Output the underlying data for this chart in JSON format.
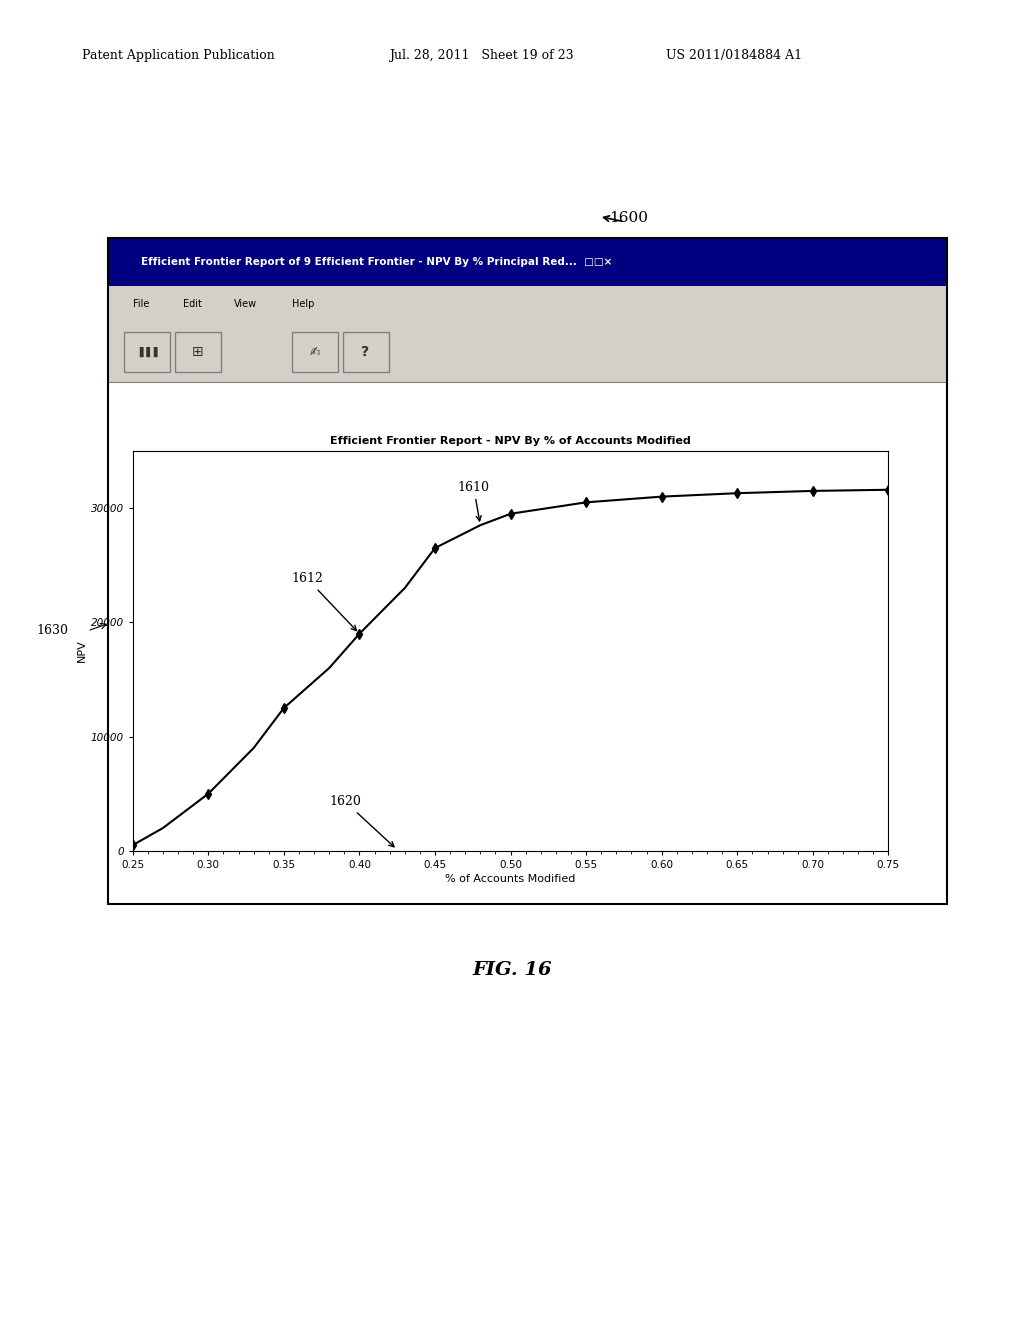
{
  "page_title_left": "Patent Application Publication",
  "page_title_center": "Jul. 28, 2011   Sheet 19 of 23",
  "page_title_right": "US 2011/0184884 A1",
  "window_title": "Efficient Frontier Report of 9 Efficient Frontier - NPV By % Principal Red...  □□×",
  "menu_items": [
    "File",
    "Edit",
    "View",
    "Help"
  ],
  "chart_title": "Efficient Frontier Report - NPV By % of Accounts Modified",
  "xlabel": "% of Accounts Modified",
  "ylabel": "NPV",
  "xlim": [
    0.25,
    0.75
  ],
  "ylim": [
    0,
    35000
  ],
  "xticks": [
    0.25,
    0.3,
    0.35,
    0.4,
    0.45,
    0.5,
    0.55,
    0.6,
    0.65,
    0.7,
    0.75
  ],
  "yticks": [
    0,
    10000,
    20000,
    30000
  ],
  "curve_x": [
    0.25,
    0.27,
    0.3,
    0.33,
    0.35,
    0.38,
    0.4,
    0.43,
    0.45,
    0.48,
    0.5,
    0.55,
    0.6,
    0.65,
    0.7,
    0.75
  ],
  "curve_y": [
    500,
    2000,
    5000,
    9000,
    12500,
    16000,
    19000,
    23000,
    26500,
    28500,
    29500,
    30500,
    31000,
    31300,
    31500,
    31600
  ],
  "marker_x": [
    0.25,
    0.3,
    0.35,
    0.4,
    0.45,
    0.5,
    0.55,
    0.6,
    0.65,
    0.7,
    0.75
  ],
  "marker_y": [
    500,
    5000,
    12500,
    19000,
    26500,
    29500,
    30500,
    31000,
    31300,
    31500,
    31600
  ],
  "label_1600": "1600",
  "label_1610": "1610",
  "label_1612": "1612",
  "label_1620": "1620",
  "label_1630": "1630",
  "fig_label": "FIG. 16",
  "bg_color": "#ffffff",
  "line_color": "#000000",
  "marker_color": "#000000",
  "window_bg": "#d4d0c8",
  "chart_bg": "#ffffff"
}
